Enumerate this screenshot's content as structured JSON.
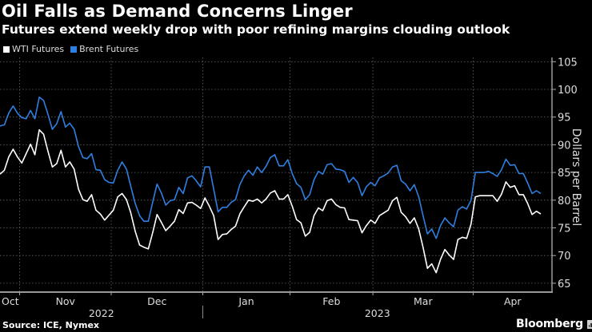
{
  "header": {
    "title": "Oil Falls as Demand Concerns Linger",
    "subtitle": "Futures extend weekly drop with poor refining margins clouding outlook"
  },
  "footer": {
    "source": "Source: ICE, Nymex",
    "logo": "Bloomberg"
  },
  "chart_data": {
    "type": "line",
    "title": "Oil Falls as Demand Concerns Linger",
    "subtitle": "Futures extend weekly drop with poor refining margins clouding outlook",
    "ylabel": "Dollars per Barrel",
    "xlabel": "",
    "ylim": [
      63,
      106
    ],
    "yticks": [
      65,
      70,
      75,
      80,
      85,
      90,
      95,
      100,
      105
    ],
    "y_axis_side": "right",
    "grid": true,
    "legend_position": "top-left",
    "month_labels": [
      "Oct",
      "Nov",
      "Dec",
      "Jan",
      "Feb",
      "Mar",
      "Apr"
    ],
    "year_labels": [
      "2022",
      "2023"
    ],
    "colors": {
      "WTI Futures": "#ffffff",
      "Brent Futures": "#2f7fe0",
      "background": "#000000"
    },
    "x": [
      "2022-10-25",
      "2022-10-26",
      "2022-10-27",
      "2022-10-28",
      "2022-10-31",
      "2022-11-01",
      "2022-11-02",
      "2022-11-03",
      "2022-11-04",
      "2022-11-07",
      "2022-11-08",
      "2022-11-09",
      "2022-11-10",
      "2022-11-11",
      "2022-11-14",
      "2022-11-15",
      "2022-11-16",
      "2022-11-17",
      "2022-11-18",
      "2022-11-21",
      "2022-11-22",
      "2022-11-23",
      "2022-11-25",
      "2022-11-28",
      "2022-11-29",
      "2022-11-30",
      "2022-12-01",
      "2022-12-02",
      "2022-12-05",
      "2022-12-06",
      "2022-12-07",
      "2022-12-08",
      "2022-12-09",
      "2022-12-12",
      "2022-12-13",
      "2022-12-14",
      "2022-12-15",
      "2022-12-16",
      "2022-12-19",
      "2022-12-20",
      "2022-12-21",
      "2022-12-22",
      "2022-12-23",
      "2022-12-27",
      "2022-12-28",
      "2022-12-29",
      "2022-12-30",
      "2023-01-03",
      "2023-01-04",
      "2023-01-05",
      "2023-01-06",
      "2023-01-09",
      "2023-01-10",
      "2023-01-11",
      "2023-01-12",
      "2023-01-13",
      "2023-01-17",
      "2023-01-18",
      "2023-01-19",
      "2023-01-20",
      "2023-01-23",
      "2023-01-24",
      "2023-01-25",
      "2023-01-26",
      "2023-01-27",
      "2023-01-30",
      "2023-01-31",
      "2023-02-01",
      "2023-02-02",
      "2023-02-03",
      "2023-02-06",
      "2023-02-07",
      "2023-02-08",
      "2023-02-09",
      "2023-02-10",
      "2023-02-13",
      "2023-02-14",
      "2023-02-15",
      "2023-02-16",
      "2023-02-17",
      "2023-02-21",
      "2023-02-22",
      "2023-02-23",
      "2023-02-24",
      "2023-02-27",
      "2023-02-28",
      "2023-03-01",
      "2023-03-02",
      "2023-03-03",
      "2023-03-06",
      "2023-03-07",
      "2023-03-08",
      "2023-03-09",
      "2023-03-10",
      "2023-03-13",
      "2023-03-14",
      "2023-03-15",
      "2023-03-16",
      "2023-03-17",
      "2023-03-20",
      "2023-03-21",
      "2023-03-22",
      "2023-03-23",
      "2023-03-24",
      "2023-03-27",
      "2023-03-28",
      "2023-03-29",
      "2023-03-30",
      "2023-03-31",
      "2023-04-03",
      "2023-04-04",
      "2023-04-05",
      "2023-04-06",
      "2023-04-10",
      "2023-04-11",
      "2023-04-12",
      "2023-04-13",
      "2023-04-14",
      "2023-04-17",
      "2023-04-18",
      "2023-04-19",
      "2023-04-20",
      "2023-04-21",
      "2023-04-24",
      "2023-04-25"
    ],
    "series": [
      {
        "name": "WTI Futures",
        "values": [
          84.7,
          85.4,
          87.8,
          89.2,
          87.8,
          86.7,
          88.4,
          90.1,
          88.2,
          92.7,
          91.9,
          88.8,
          86.0,
          86.6,
          89.0,
          86.0,
          86.9,
          85.6,
          82.0,
          80.1,
          79.8,
          81.0,
          78.2,
          77.5,
          76.4,
          77.3,
          78.2,
          80.6,
          81.2,
          80.1,
          77.7,
          74.4,
          71.9,
          71.5,
          71.2,
          74.1,
          77.4,
          76.0,
          74.5,
          75.3,
          76.2,
          78.3,
          77.6,
          79.5,
          79.6,
          79.1,
          78.5,
          80.4,
          78.9,
          77.2,
          72.9,
          73.8,
          73.9,
          74.7,
          75.3,
          77.5,
          78.8,
          80.0,
          79.8,
          80.2,
          79.5,
          80.2,
          81.3,
          81.7,
          80.2,
          80.2,
          81.0,
          78.9,
          76.5,
          75.9,
          73.5,
          74.2,
          77.2,
          78.6,
          78.1,
          79.9,
          80.2,
          79.2,
          78.7,
          78.6,
          76.5,
          76.4,
          76.3,
          74.1,
          75.4,
          76.4,
          75.8,
          77.2,
          77.7,
          78.2,
          79.9,
          80.5,
          77.8,
          77.0,
          75.8,
          76.8,
          74.8,
          71.5,
          67.7,
          68.5,
          66.9,
          69.3,
          71.1,
          70.1,
          69.3,
          72.9,
          73.3,
          73.1,
          75.7,
          80.6,
          80.8,
          80.8,
          80.8,
          80.8,
          79.8,
          81.1,
          83.3,
          82.3,
          82.6,
          81.0,
          81.0,
          79.4,
          77.4,
          78.0,
          77.5
        ]
      },
      {
        "name": "Brent Futures",
        "values": [
          93.4,
          93.6,
          95.7,
          97.0,
          95.7,
          94.9,
          94.7,
          96.2,
          94.7,
          98.6,
          98.0,
          95.5,
          92.8,
          93.8,
          96.0,
          93.2,
          93.9,
          92.8,
          89.7,
          87.7,
          87.5,
          88.4,
          85.5,
          85.4,
          83.7,
          83.2,
          83.1,
          85.4,
          86.9,
          85.6,
          82.5,
          79.4,
          77.2,
          76.2,
          76.2,
          79.6,
          82.9,
          81.3,
          79.1,
          79.9,
          80.1,
          82.3,
          81.2,
          84.0,
          84.4,
          83.5,
          82.4,
          86.0,
          86.0,
          82.0,
          77.9,
          78.7,
          78.7,
          79.6,
          80.1,
          82.8,
          84.4,
          85.4,
          84.5,
          86.0,
          85.0,
          86.1,
          87.7,
          88.2,
          86.2,
          86.2,
          87.3,
          84.8,
          83.0,
          82.3,
          80.1,
          81.0,
          83.7,
          85.2,
          84.7,
          86.4,
          86.6,
          85.6,
          85.5,
          85.2,
          83.2,
          84.1,
          83.2,
          80.8,
          82.4,
          83.2,
          82.6,
          84.0,
          84.4,
          84.9,
          86.0,
          86.3,
          83.5,
          82.9,
          81.7,
          82.8,
          80.6,
          77.2,
          73.9,
          74.8,
          73.1,
          75.4,
          76.8,
          75.9,
          75.2,
          78.2,
          78.8,
          78.4,
          80.0,
          85.0,
          85.0,
          85.0,
          85.2,
          84.8,
          84.3,
          85.5,
          87.4,
          86.3,
          86.4,
          84.8,
          84.8,
          83.1,
          81.2,
          81.7,
          81.2
        ]
      }
    ]
  }
}
